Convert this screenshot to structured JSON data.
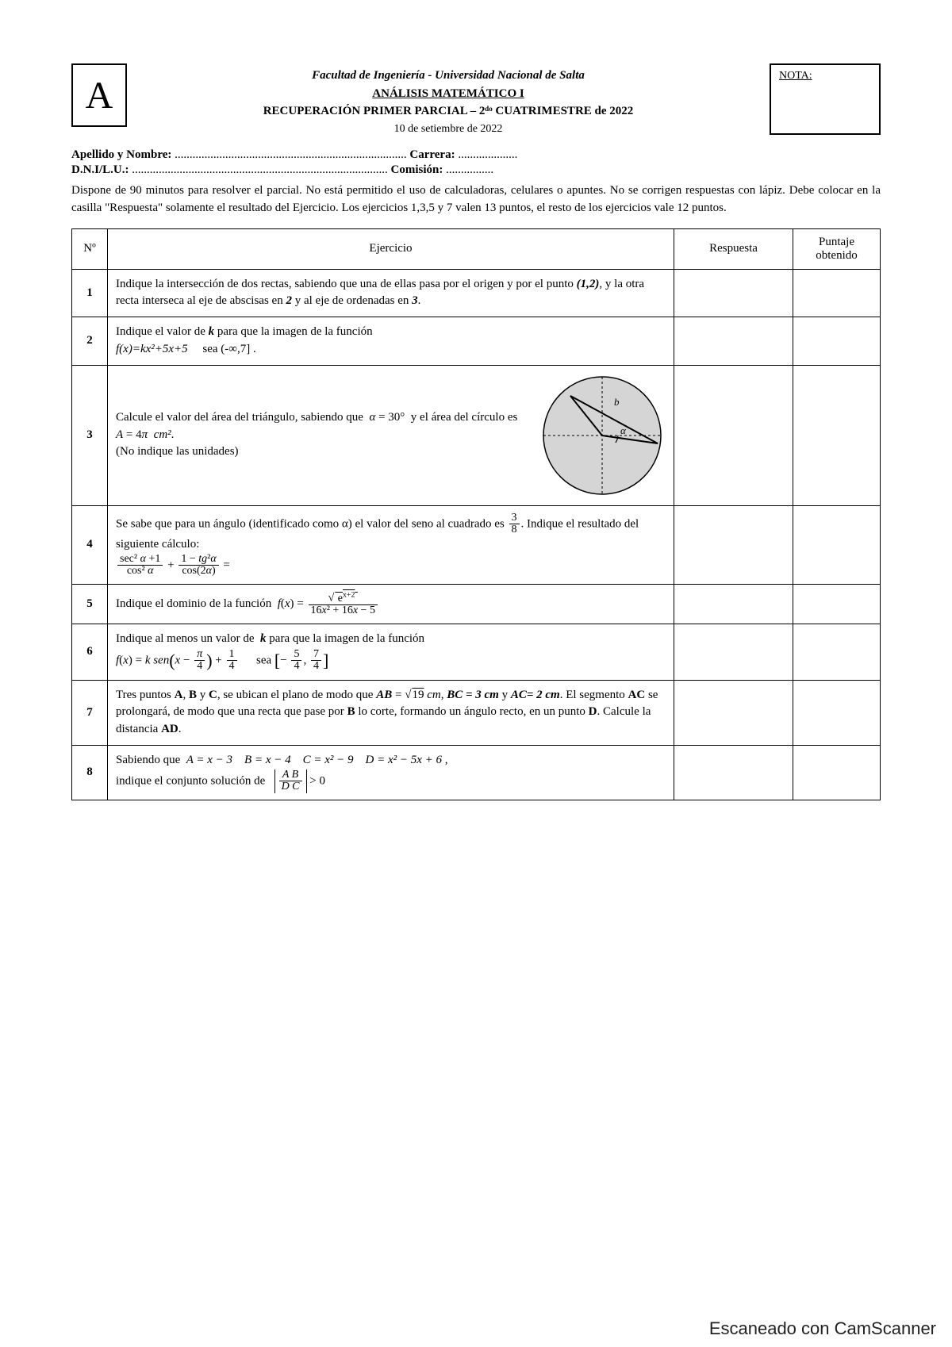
{
  "colors": {
    "text": "#000000",
    "bg": "#ffffff",
    "border": "#000000",
    "figfill": "#d5d5d5"
  },
  "header": {
    "letter": "A",
    "line1": "Facultad de Ingeniería - Universidad Nacional de Salta",
    "line2": "ANÁLISIS MATEMÁTICO I",
    "line3": "RECUPERACIÓN PRIMER PARCIAL – 2ᵈᵒ CUATRIMESTRE de 2022",
    "line4": "10 de setiembre de 2022",
    "nota_label": "NOTA:"
  },
  "info": {
    "apellido_label": "Apellido y Nombre:",
    "carrera_label": "Carrera:",
    "dni_label": "D.N.I/L.U.:",
    "comision_label": "Comisión:"
  },
  "instructions": "Dispone de 90 minutos para resolver el parcial. No está permitido el uso de calculadoras, celulares o apuntes. No se corrigen respuestas con lápiz. Debe colocar en la casilla \"Respuesta\" solamente el resultado del Ejercicio. Los ejercicios 1,3,5 y 7 valen 13 puntos, el resto de los ejercicios vale 12 puntos.",
  "columns": {
    "n": "Nº",
    "ej": "Ejercicio",
    "resp": "Respuesta",
    "score": "Puntaje obtenido"
  },
  "rows": [
    {
      "n": "1",
      "html": "Indique la intersección de dos rectas, sabiendo que una de ellas pasa por el origen y por el punto <b><i>(1,2)</i></b>, y la otra recta interseca al eje de abscisas en <b><i>2</i></b> y al eje de ordenadas en <b><i>3</i></b>."
    },
    {
      "n": "2",
      "html": "Indique el valor de <b><i>k</i></b> para que la imagen de la función<br><i>f(x)=kx²+5x+5</i> &nbsp;&nbsp;&nbsp; sea (-∞,7] ."
    },
    {
      "n": "3",
      "html": "<div class='ex3-wrap'><div class='ex3-text'>Calcule el valor del área del triángulo, sabiendo que &nbsp;<i>α</i> = 30° &nbsp;y el área del círculo es <i>A</i> = 4<i>π</i> &nbsp;<i>cm²</i>.<br>(No indique las unidades)</div><div class='circle-fig'><svg width='160' height='160' viewBox='0 0 160 160'><circle cx='80' cy='80' r='74' fill='#d5d5d5' stroke='#000' stroke-width='1.5'/><line x1='80' y1='6' x2='80' y2='154' stroke='#000' stroke-width='1' stroke-dasharray='3,3'/><line x1='6' y1='80' x2='154' y2='80' stroke='#000' stroke-width='1' stroke-dasharray='3,3'/><path d='M 80 80 L 40 30 L 150 90 Z' fill='none' stroke='#000' stroke-width='2'/><path d='M 100 80 A 20 20 0 0 1 97 89' fill='none' stroke='#000' stroke-width='1.2'/><text x='103' y='78' font-size='13' font-style='italic'>α</text><text x='95' y='42' font-size='13' font-style='italic'>b</text></svg></div></div>"
    },
    {
      "n": "4",
      "html": "Se sabe que para un ángulo (identificado como α) el valor del seno al cuadrado es <span class='frac'><span class='fn'>3</span><span class='fd'>8</span></span>. Indique el resultado del siguiente cálculo:<br><span class='frac'><span class='fn'>sec² <i>α</i> +1</span><span class='fd'>cos² <i>α</i></span></span> + <span class='frac'><span class='fn'>1 − <i>tg</i>²<i>α</i></span><span class='fd'>cos(2<i>α</i>)</span></span> ="
    },
    {
      "n": "5",
      "html": "Indique el dominio de la función &nbsp;<i>f</i>(<i>x</i>) = <span class='frac'><span class='fn'>√<span class='sqrt'>&nbsp;e<sup>x+2</sup>&nbsp;</span></span><span class='fd'>16<i>x</i>² + 16<i>x</i> − 5</span></span>"
    },
    {
      "n": "6",
      "html": "Indique al menos un valor de &nbsp;<b><i>k</i></b> para que la imagen de la función<br><i>f</i>(<i>x</i>) = <i>k sen</i><span class='bbrac'>(</span><i>x</i> − <span class='frac'><span class='fn'><i>π</i></span><span class='fd'>4</span></span><span class='bbrac'>)</span> + <span class='frac'><span class='fn'>1</span><span class='fd'>4</span></span> &nbsp;&nbsp;&nbsp;&nbsp; sea <span class='bbrac'>[</span>− <span class='frac'><span class='fn'>5</span><span class='fd'>4</span></span>, <span class='frac'><span class='fn'>7</span><span class='fd'>4</span></span><span class='bbrac'>]</span>"
    },
    {
      "n": "7",
      "html": "Tres puntos <b>A</b>, <b>B</b> y <b>C</b>, se ubican el plano de modo que <b><i>AB</i></b> = √<span class='sqrt'>19</span> <i>cm</i>, <b><i>BC = 3 cm</i></b> y <b><i>AC= 2 cm</i></b>. El segmento <b>AC</b> se prolongará, de modo que una recta que pase por <b>B</b> lo corte, formando un ángulo recto, en un punto <b>D</b>. Calcule la distancia <b>AD</b>."
    },
    {
      "n": "8",
      "html": "Sabiendo que &nbsp;<i>A = x − 3</i> &nbsp;&nbsp; <i>B = x − 4</i> &nbsp;&nbsp; <i>C = x² − 9</i> &nbsp;&nbsp; <i>D = x² − 5x + 6</i> ,<br>indique el conjunto solución de &nbsp; <span class='abs'><span class='frac'><span class='fn'><i>A B</i></span><span class='fd'><i>D C</i></span></span></span> &gt; 0"
    }
  ],
  "footer": "Escaneado con CamScanner"
}
